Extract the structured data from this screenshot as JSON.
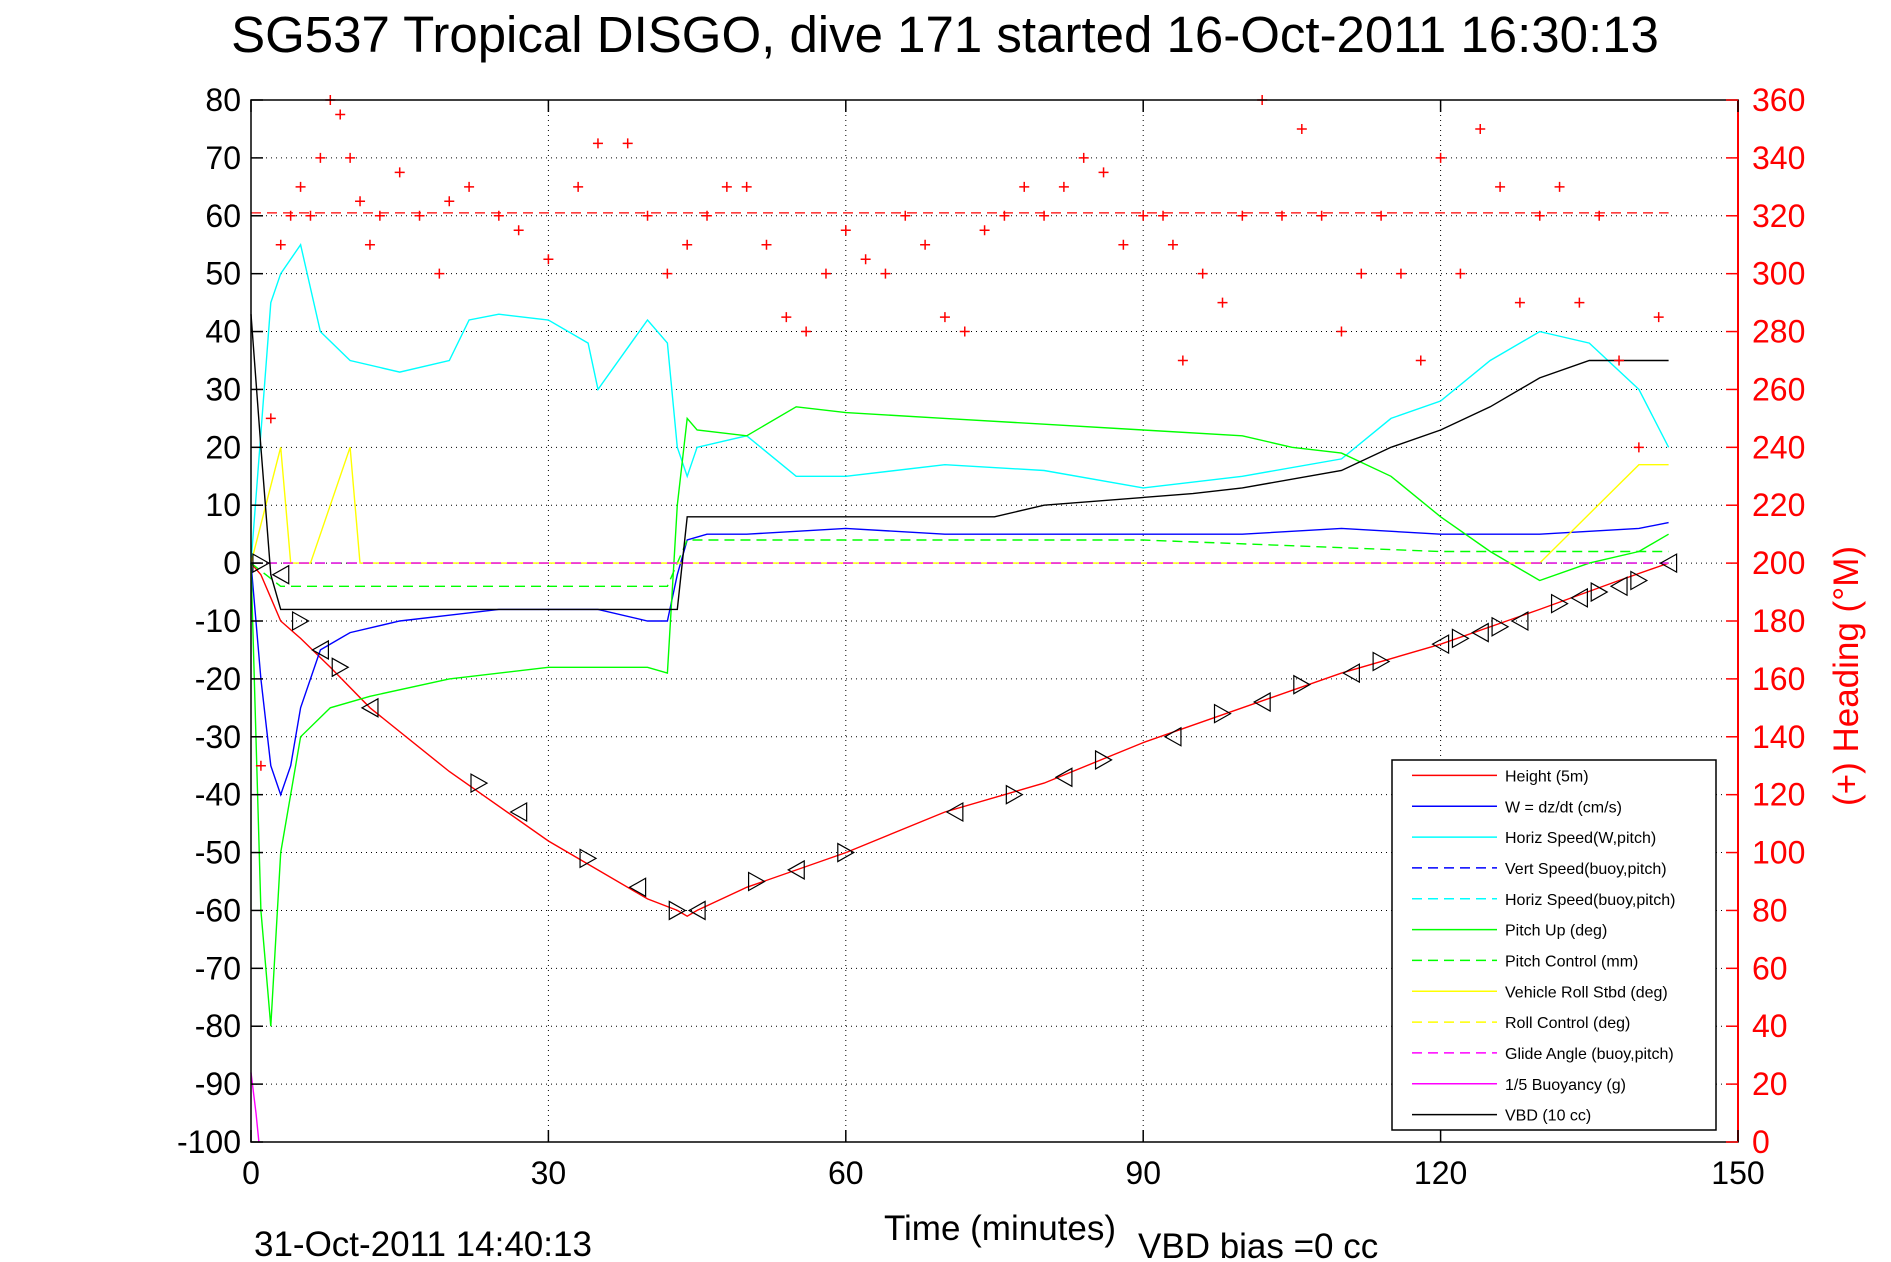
{
  "chart_data": {
    "type": "line",
    "title": "SG537 Tropical DISGO, dive 171 started 16-Oct-2011 16:30:13",
    "xlabel": "Time (minutes)",
    "ylabel": "",
    "ylabel_right": "(+) Heading (°M)",
    "footer_left": "31-Oct-2011 14:40:13",
    "footer_right": "VBD bias =0 cc",
    "xlim": [
      0,
      150
    ],
    "ylim": [
      -100,
      80
    ],
    "ylim_right": [
      0,
      360
    ],
    "x_ticks": [
      "0",
      "30",
      "60",
      "90",
      "120",
      "150"
    ],
    "y_ticks": [
      "80",
      "70",
      "60",
      "50",
      "40",
      "30",
      "20",
      "10",
      "0",
      "-10",
      "-20",
      "-30",
      "-40",
      "-50",
      "-60",
      "-70",
      "-80",
      "-90",
      "-100"
    ],
    "y_ticks_right": [
      "360",
      "340",
      "320",
      "300",
      "280",
      "260",
      "240",
      "220",
      "200",
      "180",
      "160",
      "140",
      "120",
      "100",
      "80",
      "60",
      "40",
      "20",
      "0"
    ],
    "grid": true,
    "legend_position": "lower-right",
    "legend": [
      {
        "label": "Height (5m)",
        "color": "#ff0000",
        "dash": "solid"
      },
      {
        "label": "W = dz/dt (cm/s)",
        "color": "#0000ff",
        "dash": "solid"
      },
      {
        "label": "Horiz Speed(W,pitch)",
        "color": "#00ffff",
        "dash": "solid"
      },
      {
        "label": "Vert Speed(buoy,pitch)",
        "color": "#0000ff",
        "dash": "dashed"
      },
      {
        "label": "Horiz Speed(buoy,pitch)",
        "color": "#00ffff",
        "dash": "dashed"
      },
      {
        "label": "Pitch Up (deg)",
        "color": "#00ff00",
        "dash": "solid"
      },
      {
        "label": "Pitch Control (mm)",
        "color": "#00ff00",
        "dash": "dashed"
      },
      {
        "label": "Vehicle Roll Stbd (deg)",
        "color": "#ffff00",
        "dash": "solid"
      },
      {
        "label": "Roll Control (deg)",
        "color": "#ffff00",
        "dash": "dashed"
      },
      {
        "label": "Glide Angle (buoy,pitch)",
        "color": "#ff00ff",
        "dash": "dashed"
      },
      {
        "label": "1/5 Buoyancy (g)",
        "color": "#ff00ff",
        "dash": "solid"
      },
      {
        "label": "VBD (10 cc)",
        "color": "#000000",
        "dash": "solid"
      }
    ],
    "series": [
      {
        "name": "Height (5m)",
        "color": "#ff0000",
        "x": [
          0,
          1,
          2,
          3,
          5,
          8,
          12,
          20,
          30,
          40,
          43,
          44,
          45,
          50,
          60,
          70,
          80,
          90,
          100,
          110,
          120,
          130,
          138,
          143
        ],
        "y": [
          0,
          -2,
          -6,
          -10,
          -13,
          -18,
          -25,
          -36,
          -48,
          -58,
          -60,
          -61,
          -60,
          -56,
          -50,
          -43,
          -38,
          -31,
          -25,
          -19,
          -14,
          -8,
          -3,
          0
        ]
      },
      {
        "name": "W = dz/dt (cm/s)",
        "color": "#0000ff",
        "x": [
          0,
          1,
          2,
          3,
          4,
          5,
          7,
          10,
          15,
          20,
          25,
          30,
          35,
          40,
          42,
          43,
          44,
          46,
          50,
          60,
          70,
          80,
          90,
          100,
          110,
          120,
          130,
          140,
          143
        ],
        "y": [
          0,
          -20,
          -35,
          -40,
          -35,
          -25,
          -15,
          -12,
          -10,
          -9,
          -8,
          -8,
          -8,
          -10,
          -10,
          -2,
          4,
          5,
          5,
          6,
          5,
          5,
          5,
          5,
          6,
          5,
          5,
          6,
          7
        ]
      },
      {
        "name": "Horiz Speed(W,pitch)",
        "color": "#00ffff",
        "x": [
          0,
          2,
          3,
          5,
          7,
          10,
          15,
          20,
          22,
          25,
          30,
          34,
          35,
          40,
          42,
          43,
          44,
          45,
          50,
          55,
          60,
          70,
          80,
          90,
          100,
          110,
          115,
          120,
          125,
          130,
          135,
          140,
          143
        ],
        "y": [
          0,
          45,
          50,
          55,
          40,
          35,
          33,
          35,
          42,
          43,
          42,
          38,
          30,
          42,
          38,
          20,
          15,
          20,
          22,
          15,
          15,
          17,
          16,
          13,
          15,
          18,
          25,
          28,
          35,
          40,
          38,
          30,
          20
        ]
      },
      {
        "name": "Vert Speed(buoy,pitch)",
        "color": "#0000ff",
        "x": [
          0,
          143
        ],
        "y": [
          0,
          0
        ]
      },
      {
        "name": "Horiz Speed(buoy,pitch)",
        "color": "#00ffff",
        "x": [
          0,
          143
        ],
        "y": [
          0,
          0
        ]
      },
      {
        "name": "Pitch Up (deg)",
        "color": "#00ff00",
        "x": [
          0,
          1,
          2,
          3,
          5,
          8,
          12,
          20,
          30,
          40,
          42,
          43,
          44,
          45,
          50,
          55,
          60,
          70,
          80,
          90,
          100,
          105,
          110,
          115,
          120,
          125,
          130,
          135,
          140,
          143
        ],
        "y": [
          0,
          -60,
          -80,
          -50,
          -30,
          -25,
          -23,
          -20,
          -18,
          -18,
          -19,
          10,
          25,
          23,
          22,
          27,
          26,
          25,
          24,
          23,
          22,
          20,
          19,
          15,
          8,
          2,
          -3,
          0,
          2,
          5
        ]
      },
      {
        "name": "Pitch Control (mm)",
        "color": "#00ff00",
        "x": [
          0,
          3,
          42,
          44,
          90,
          120,
          143
        ],
        "y": [
          0,
          -4,
          -4,
          4,
          4,
          2,
          2
        ]
      },
      {
        "name": "Vehicle Roll Stbd (deg)",
        "color": "#ffff00",
        "x": [
          0,
          3,
          4,
          6,
          10,
          11,
          12,
          40,
          42,
          44,
          60,
          70,
          80,
          90,
          100,
          110,
          120,
          130,
          140,
          143
        ],
        "y": [
          0,
          20,
          0,
          0,
          20,
          0,
          0,
          0,
          0,
          0,
          0,
          0,
          0,
          0,
          0,
          0,
          0,
          0,
          17,
          17
        ]
      },
      {
        "name": "Roll Control (deg)",
        "color": "#ffff00",
        "x": [
          0,
          143
        ],
        "y": [
          0,
          0
        ]
      },
      {
        "name": "Glide Angle (buoy,pitch)",
        "color": "#ff00ff",
        "x": [
          0,
          143
        ],
        "y": [
          0,
          0
        ]
      },
      {
        "name": "1/5 Buoyancy (g)",
        "color": "#ff00ff",
        "x": [
          0,
          0.5,
          0.8
        ],
        "y": [
          -88,
          -95,
          -100
        ]
      },
      {
        "name": "VBD (10 cc)",
        "color": "#000000",
        "x": [
          0,
          1,
          2,
          3,
          4,
          43,
          44,
          75,
          80,
          95,
          100,
          110,
          115,
          120,
          125,
          130,
          135,
          143
        ],
        "y": [
          43,
          20,
          -2,
          -8,
          -8,
          -8,
          8,
          8,
          10,
          12,
          13,
          16,
          20,
          23,
          27,
          32,
          35,
          35
        ]
      }
    ],
    "heading_points": {
      "name": "(+) Heading",
      "color": "#ff0000",
      "marker": "+",
      "x": [
        1,
        2,
        3,
        4,
        5,
        6,
        7,
        8,
        9,
        10,
        11,
        12,
        13,
        15,
        17,
        19,
        20,
        22,
        25,
        27,
        30,
        33,
        35,
        38,
        40,
        42,
        44,
        46,
        48,
        50,
        52,
        54,
        56,
        58,
        60,
        62,
        64,
        66,
        68,
        70,
        72,
        74,
        76,
        78,
        80,
        82,
        84,
        86,
        88,
        90,
        92,
        93,
        94,
        96,
        98,
        100,
        102,
        104,
        106,
        108,
        110,
        112,
        114,
        116,
        118,
        120,
        122,
        124,
        126,
        128,
        130,
        132,
        134,
        136,
        138,
        140,
        142
      ],
      "y": [
        130,
        250,
        310,
        320,
        330,
        320,
        340,
        360,
        355,
        340,
        325,
        310,
        320,
        335,
        320,
        300,
        325,
        330,
        320,
        315,
        305,
        330,
        345,
        345,
        320,
        300,
        310,
        320,
        330,
        330,
        310,
        285,
        280,
        300,
        315,
        305,
        300,
        320,
        310,
        285,
        280,
        315,
        320,
        330,
        320,
        330,
        340,
        335,
        310,
        320,
        320,
        310,
        270,
        300,
        290,
        320,
        360,
        320,
        350,
        320,
        280,
        300,
        320,
        300,
        270,
        340,
        300,
        350,
        330,
        290,
        320,
        330,
        290,
        320,
        270,
        240,
        285
      ]
    },
    "heading_ref_line": 321,
    "triangle_markers": {
      "color": "#000000",
      "x": [
        1,
        3,
        5,
        7,
        9,
        12,
        23,
        27,
        34,
        39,
        43,
        45,
        51,
        55,
        60,
        71,
        77,
        82,
        86,
        93,
        98,
        102,
        106,
        111,
        114,
        120,
        122,
        124,
        126,
        128,
        132,
        134,
        136,
        138,
        140,
        143
      ],
      "y": [
        0,
        -2,
        -10,
        -15,
        -18,
        -25,
        -38,
        -43,
        -51,
        -56,
        -60,
        -60,
        -55,
        -53,
        -50,
        -43,
        -40,
        -37,
        -34,
        -30,
        -26,
        -24,
        -21,
        -19,
        -17,
        -14,
        -13,
        -12,
        -11,
        -10,
        -7,
        -6,
        -5,
        -4,
        -3,
        0
      ]
    }
  }
}
